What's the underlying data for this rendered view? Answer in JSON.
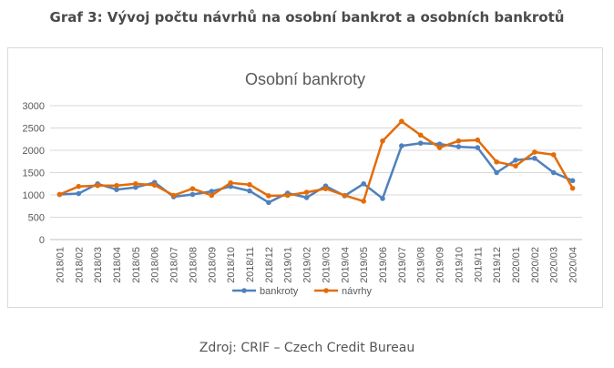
{
  "heading": "Graf 3: Vývoj počtu návrhů na osobní bankrot a osobních bankrotů",
  "source": "Zdroj: CRIF – Czech Credit Bureau",
  "chart_data": {
    "type": "line",
    "title": "Osobní bankroty",
    "xlabel": "",
    "ylabel": "",
    "ylim": [
      0,
      3000
    ],
    "yticks": [
      0,
      500,
      1000,
      1500,
      2000,
      2500,
      3000
    ],
    "grid": true,
    "legend": "bottom",
    "categories": [
      "2018/01",
      "2018/02",
      "2018/03",
      "2018/04",
      "2018/05",
      "2018/06",
      "2018/07",
      "2018/08",
      "2018/09",
      "2018/10",
      "2018/11",
      "2018/12",
      "2019/01",
      "2019/02",
      "2019/03",
      "2019/04",
      "2019/05",
      "2019/06",
      "2019/07",
      "2019/08",
      "2019/09",
      "2019/10",
      "2019/11",
      "2019/12",
      "2020/01",
      "2020/02",
      "2020/03",
      "2020/04"
    ],
    "series": [
      {
        "name": "bankroty",
        "color": "#4f81bd",
        "values": [
          1010,
          1030,
          1250,
          1120,
          1170,
          1280,
          960,
          1010,
          1080,
          1190,
          1090,
          830,
          1040,
          940,
          1200,
          980,
          1250,
          920,
          2100,
          2160,
          2140,
          2080,
          2060,
          1500,
          1780,
          1820,
          1500,
          1320
        ]
      },
      {
        "name": "návrhy",
        "color": "#e36c09",
        "values": [
          1010,
          1190,
          1210,
          1210,
          1250,
          1220,
          990,
          1140,
          990,
          1270,
          1230,
          980,
          990,
          1060,
          1140,
          990,
          860,
          2210,
          2650,
          2340,
          2060,
          2210,
          2230,
          1740,
          1650,
          1960,
          1900,
          1150
        ]
      }
    ]
  }
}
